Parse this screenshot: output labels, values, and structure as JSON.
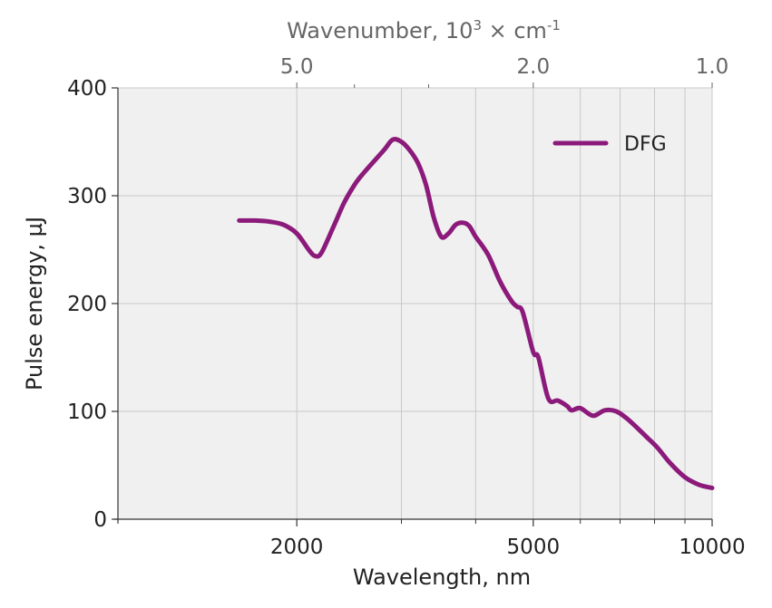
{
  "chart_data": {
    "type": "line",
    "xlabel": "Wavelength, nm",
    "ylabel": "Pulse energy, µJ",
    "top_xlabel": {
      "text": "Wavenumber, 10",
      "superscript": "3",
      "unit_text": " × cm",
      "unit_superscript": "-1"
    },
    "x_scale": "log",
    "top_x_scale": "reciprocal",
    "xlim": [
      1000,
      10000
    ],
    "ylim": [
      0,
      400
    ],
    "x_ticks": [
      {
        "value": 2000,
        "label": "2000"
      },
      {
        "value": 5000,
        "label": "5000"
      },
      {
        "value": 10000,
        "label": "10000"
      }
    ],
    "x_minor_ticks": [
      1000,
      3000,
      4000,
      6000,
      7000,
      8000,
      9000
    ],
    "top_ticks": [
      {
        "value": 5.0,
        "label": "5.0"
      },
      {
        "value": 2.0,
        "label": "2.0"
      },
      {
        "value": 1.0,
        "label": "1.0"
      }
    ],
    "top_minor_ticks": [
      4.0,
      3.0
    ],
    "y_ticks": [
      {
        "value": 0,
        "label": "0"
      },
      {
        "value": 100,
        "label": "100"
      },
      {
        "value": 200,
        "label": "200"
      },
      {
        "value": 300,
        "label": "300"
      },
      {
        "value": 400,
        "label": "400"
      }
    ],
    "grid": true,
    "legend": {
      "position": "top-right"
    },
    "colors": {
      "series": "#8b1a7a",
      "plot_bg": "#f0f0f0",
      "grid": "#c8c8c8"
    },
    "series": [
      {
        "name": "DFG",
        "x": [
          1600,
          1700,
          1800,
          1900,
          2000,
          2100,
          2150,
          2200,
          2300,
          2400,
          2500,
          2600,
          2800,
          2900,
          3000,
          3100,
          3200,
          3300,
          3400,
          3500,
          3600,
          3700,
          3800,
          3900,
          4000,
          4200,
          4400,
          4600,
          4700,
          4800,
          5000,
          5100,
          5300,
          5500,
          5700,
          5800,
          6000,
          6300,
          6600,
          6900,
          7200,
          7500,
          7800,
          8100,
          8500,
          9000,
          9500,
          10000
        ],
        "y": [
          277,
          277,
          276,
          273,
          265,
          249,
          244,
          247,
          270,
          293,
          310,
          322,
          342,
          352,
          350,
          342,
          330,
          310,
          280,
          262,
          265,
          273,
          275,
          272,
          262,
          245,
          220,
          202,
          197,
          192,
          155,
          150,
          112,
          110,
          105,
          101,
          103,
          96,
          101,
          100,
          93,
          84,
          75,
          66,
          52,
          39,
          32,
          29
        ]
      }
    ]
  }
}
